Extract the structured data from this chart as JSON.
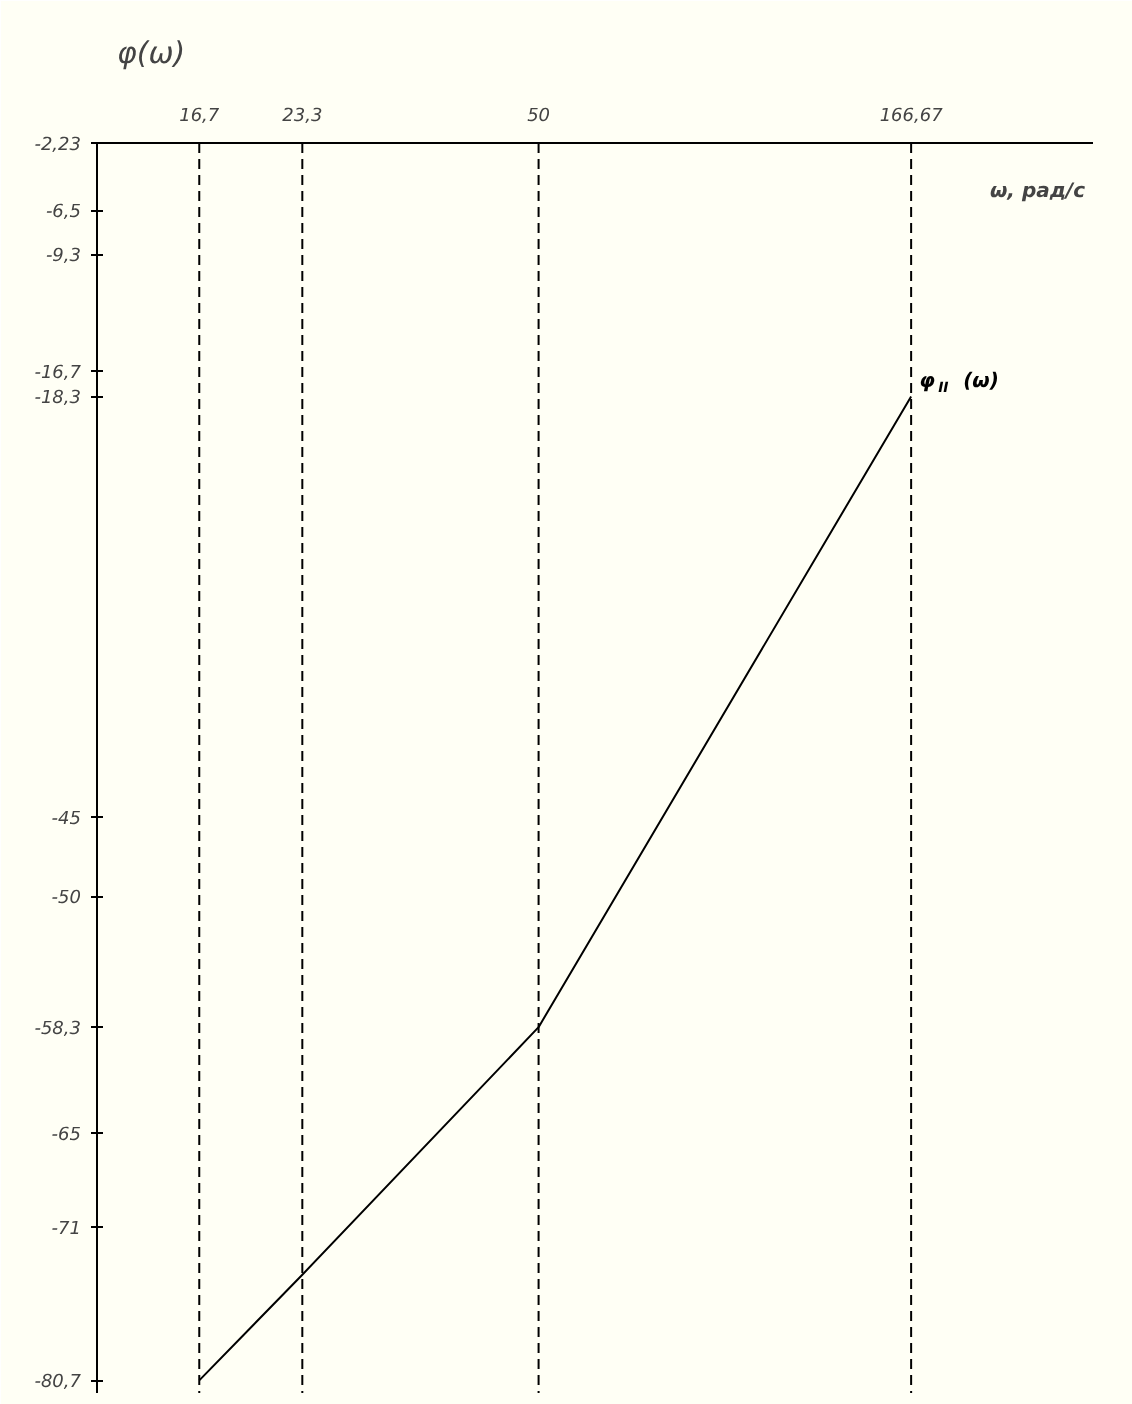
{
  "chart_data": {
    "type": "line",
    "xlabel": "ω, рад/с",
    "ylabel": "φ(ω)",
    "x": [
      16.7,
      23.3,
      50,
      166.67
    ],
    "series": [
      {
        "name": "φ$_{II}$(ω)",
        "color": "#000000",
        "values": [
          -80.7,
          -74,
          -58.3,
          -18.3
        ]
      }
    ],
    "xlim": [
      12,
      300
    ],
    "ylim": [
      -81.5,
      -2.23
    ],
    "log": "x",
    "xticks": [
      {
        "value": 16.7,
        "label": "16,7"
      },
      {
        "value": 23.3,
        "label": "23,3"
      },
      {
        "value": 50,
        "label": "50"
      },
      {
        "value": 166.67,
        "label": "166,67"
      }
    ],
    "yticks": [
      {
        "value": -2.23,
        "label": "-2,23"
      },
      {
        "value": -6.5,
        "label": "-6,5"
      },
      {
        "value": -9.3,
        "label": "-9,3"
      },
      {
        "value": -16.7,
        "label": "-16,7"
      },
      {
        "value": -18.3,
        "label": "-18,3"
      },
      {
        "value": -45,
        "label": "-45"
      },
      {
        "value": -50,
        "label": "-50"
      },
      {
        "value": -58.3,
        "label": "-58,3"
      },
      {
        "value": -65,
        "label": "-65"
      },
      {
        "value": -71,
        "label": "-71"
      },
      {
        "value": -80.7,
        "label": "-80,7"
      }
    ],
    "ref_lines": [
      {
        "axis": "x",
        "value": 16.7,
        "label": null,
        "line_style": "dashed"
      },
      {
        "axis": "x",
        "value": 23.3,
        "label": null,
        "line_style": "dashed"
      },
      {
        "axis": "x",
        "value": 50,
        "label": null,
        "line_style": "dashed"
      },
      {
        "axis": "x",
        "value": 166.67,
        "label": null,
        "line_style": "dashed"
      }
    ],
    "grid": false,
    "marker": "none",
    "line_style": "solid"
  }
}
